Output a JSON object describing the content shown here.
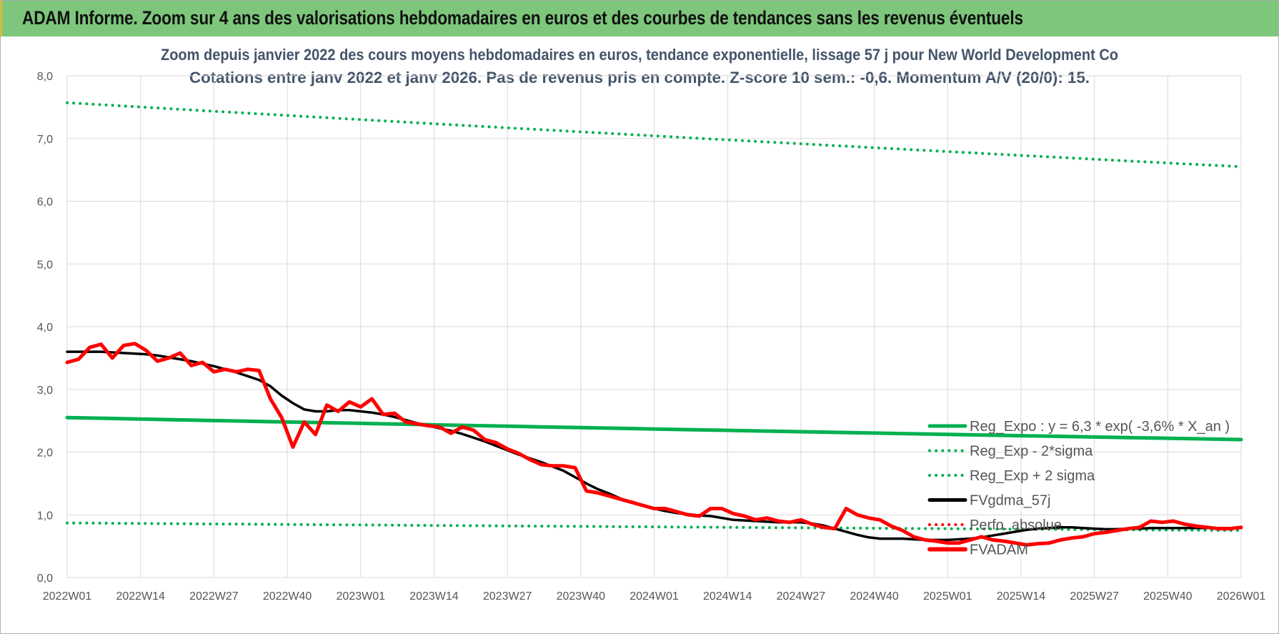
{
  "banner": {
    "title": "ADAM Informe. Zoom sur 4 ans des valorisations hebdomadaires en euros et des courbes de tendances sans les revenus éventuels"
  },
  "colors": {
    "banner_bg": "#7dc67b",
    "trend_green": "#00b050",
    "price_red": "#ff0000",
    "smooth_black": "#000000",
    "grid": "#d9d9d9"
  },
  "chart_data": {
    "type": "line",
    "title": [
      "Zoom depuis janvier 2022 des cours moyens hebdomadaires en euros, tendance exponentielle, lissage 57 j pour New World Development Co",
      "Cotations entre janv 2022 et janv 2026. Pas de revenus pris en compte. Z-score 10 sem.: -0,6. Momentum A/V (20/0): 15."
    ],
    "x_tick_labels": [
      "2022W01",
      "2022W14",
      "2022W27",
      "2022W40",
      "2023W01",
      "2023W14",
      "2023W27",
      "2023W40",
      "2024W01",
      "2024W14",
      "2024W27",
      "2024W40",
      "2025W01",
      "2025W14",
      "2025W27",
      "2025W40",
      "2026W01"
    ],
    "y_tick_labels": [
      "0,0",
      "1,0",
      "2,0",
      "3,0",
      "4,0",
      "5,0",
      "6,0",
      "7,0",
      "8,0"
    ],
    "ylim": [
      0,
      8
    ],
    "grid": true,
    "legend_position": "bottom-right",
    "x_index": [
      0,
      2,
      4,
      6,
      8,
      10,
      12,
      14,
      16,
      18,
      20,
      22,
      24,
      26,
      28,
      30,
      32,
      34,
      36,
      38,
      40,
      42,
      44,
      46,
      48,
      50,
      52,
      54,
      56,
      58,
      60,
      62,
      64,
      66,
      68,
      70,
      72,
      74,
      76,
      78,
      80,
      82,
      84,
      86,
      88,
      90,
      92,
      94,
      96,
      98,
      100,
      102,
      104,
      106,
      108,
      110,
      112,
      114,
      116,
      118,
      120,
      122,
      124,
      126,
      128,
      130,
      132,
      134,
      136,
      138,
      140,
      142,
      144,
      146,
      148,
      150,
      152,
      154,
      156,
      158,
      160,
      162,
      164,
      166,
      168,
      170,
      172,
      174,
      176,
      178,
      180,
      182,
      184,
      186,
      188,
      190,
      192,
      194,
      196,
      198,
      200,
      202,
      204,
      206,
      208
    ],
    "series": [
      {
        "name": "Reg_Expo : y = 6,3 * exp( -3,6% * X_an )",
        "style": "solid",
        "color": "#00b050",
        "start": 2.55,
        "end": 2.2
      },
      {
        "name": "Reg_Exp - 2*sigma",
        "style": "dotted",
        "color": "#00b050",
        "start": 0.87,
        "end": 0.75
      },
      {
        "name": "Reg_Exp + 2 sigma",
        "style": "dotted",
        "color": "#00b050",
        "start": 7.57,
        "end": 6.55
      },
      {
        "name": "FVgdma_57j",
        "style": "solid",
        "color": "#000000",
        "values": [
          3.6,
          3.6,
          3.6,
          3.6,
          3.59,
          3.58,
          3.57,
          3.56,
          3.54,
          3.51,
          3.48,
          3.45,
          3.41,
          3.37,
          3.32,
          3.27,
          3.21,
          3.15,
          3.05,
          2.9,
          2.78,
          2.68,
          2.65,
          2.65,
          2.67,
          2.67,
          2.65,
          2.63,
          2.6,
          2.56,
          2.51,
          2.46,
          2.42,
          2.38,
          2.34,
          2.29,
          2.23,
          2.17,
          2.1,
          2.03,
          1.96,
          1.9,
          1.84,
          1.77,
          1.7,
          1.6,
          1.5,
          1.41,
          1.34,
          1.26,
          1.2,
          1.15,
          1.1,
          1.06,
          1.03,
          1.01,
          0.99,
          0.98,
          0.95,
          0.92,
          0.91,
          0.9,
          0.89,
          0.88,
          0.88,
          0.88,
          0.86,
          0.83,
          0.78,
          0.73,
          0.68,
          0.64,
          0.62,
          0.62,
          0.62,
          0.61,
          0.6,
          0.6,
          0.6,
          0.61,
          0.62,
          0.64,
          0.67,
          0.7,
          0.73,
          0.76,
          0.78,
          0.79,
          0.8,
          0.8,
          0.79,
          0.78,
          0.77,
          0.77,
          0.78,
          0.78,
          0.79,
          0.79,
          0.79,
          0.79,
          0.79,
          0.79,
          0.79,
          0.79,
          0.79
        ]
      },
      {
        "name": "Perfo. absolue",
        "style": "dotted",
        "color": "#ff0000",
        "values": []
      },
      {
        "name": "FVADAM",
        "style": "solid",
        "color": "#ff0000",
        "values": [
          3.43,
          3.48,
          3.67,
          3.72,
          3.5,
          3.7,
          3.73,
          3.62,
          3.45,
          3.5,
          3.58,
          3.38,
          3.43,
          3.28,
          3.32,
          3.28,
          3.32,
          3.3,
          2.85,
          2.55,
          2.08,
          2.48,
          2.28,
          2.75,
          2.65,
          2.8,
          2.72,
          2.85,
          2.6,
          2.62,
          2.48,
          2.45,
          2.42,
          2.4,
          2.3,
          2.4,
          2.35,
          2.2,
          2.15,
          2.05,
          1.98,
          1.88,
          1.8,
          1.78,
          1.78,
          1.75,
          1.38,
          1.35,
          1.3,
          1.25,
          1.2,
          1.15,
          1.1,
          1.1,
          1.05,
          1.0,
          0.98,
          1.1,
          1.1,
          1.02,
          0.98,
          0.92,
          0.95,
          0.9,
          0.88,
          0.92,
          0.85,
          0.8,
          0.78,
          1.1,
          1.0,
          0.95,
          0.92,
          0.82,
          0.75,
          0.65,
          0.6,
          0.58,
          0.55,
          0.55,
          0.6,
          0.65,
          0.6,
          0.58,
          0.55,
          0.52,
          0.54,
          0.55,
          0.6,
          0.63,
          0.65,
          0.7,
          0.72,
          0.75,
          0.78,
          0.8,
          0.9,
          0.88,
          0.9,
          0.85,
          0.82,
          0.8,
          0.78,
          0.78,
          0.8
        ]
      }
    ]
  }
}
